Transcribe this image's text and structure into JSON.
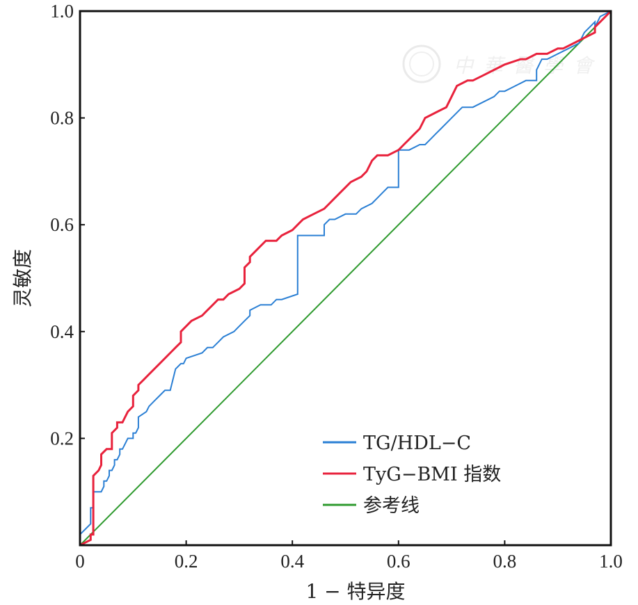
{
  "chart_data": {
    "type": "line",
    "xlabel": "1 − 特异度",
    "ylabel": "灵敏度",
    "xlim": [
      0,
      1
    ],
    "ylim": [
      0,
      1
    ],
    "x_ticks": [
      {
        "value": 0,
        "label": "0"
      },
      {
        "value": 0.2,
        "label": "0.2"
      },
      {
        "value": 0.4,
        "label": "0.4"
      },
      {
        "value": 0.6,
        "label": "0.6"
      },
      {
        "value": 0.8,
        "label": "0.8"
      },
      {
        "value": 1.0,
        "label": "1.0"
      }
    ],
    "y_ticks": [
      {
        "value": 0.2,
        "label": "0.2"
      },
      {
        "value": 0.4,
        "label": "0.4"
      },
      {
        "value": 0.6,
        "label": "0.6"
      },
      {
        "value": 0.8,
        "label": "0.8"
      },
      {
        "value": 1.0,
        "label": "1.0"
      }
    ],
    "grid": false,
    "legend_position": "bottom-right",
    "watermark": "中華醫學會",
    "series": [
      {
        "name": "TG/HDL−C",
        "color": "#2a7fd4",
        "x": [
          0,
          0.01,
          0.02,
          0.02,
          0.025,
          0.025,
          0.04,
          0.045,
          0.045,
          0.05,
          0.055,
          0.055,
          0.06,
          0.065,
          0.065,
          0.07,
          0.075,
          0.075,
          0.08,
          0.085,
          0.085,
          0.09,
          0.1,
          0.1,
          0.105,
          0.11,
          0.11,
          0.125,
          0.13,
          0.14,
          0.15,
          0.16,
          0.17,
          0.18,
          0.19,
          0.195,
          0.2,
          0.23,
          0.24,
          0.25,
          0.26,
          0.27,
          0.29,
          0.3,
          0.31,
          0.32,
          0.32,
          0.34,
          0.35,
          0.36,
          0.37,
          0.38,
          0.41,
          0.41,
          0.42,
          0.42,
          0.46,
          0.46,
          0.47,
          0.48,
          0.5,
          0.52,
          0.53,
          0.55,
          0.56,
          0.57,
          0.58,
          0.59,
          0.6,
          0.6,
          0.62,
          0.64,
          0.65,
          0.66,
          0.67,
          0.68,
          0.7,
          0.71,
          0.72,
          0.74,
          0.78,
          0.79,
          0.8,
          0.82,
          0.84,
          0.85,
          0.86,
          0.86,
          0.87,
          0.88,
          0.92,
          0.94,
          0.95,
          0.97,
          0.97,
          0.98,
          1.0
        ],
        "y": [
          0.02,
          0.03,
          0.04,
          0.07,
          0.07,
          0.1,
          0.1,
          0.11,
          0.12,
          0.12,
          0.13,
          0.14,
          0.14,
          0.15,
          0.16,
          0.16,
          0.17,
          0.18,
          0.18,
          0.19,
          0.19,
          0.2,
          0.2,
          0.21,
          0.21,
          0.22,
          0.24,
          0.25,
          0.26,
          0.27,
          0.28,
          0.29,
          0.29,
          0.33,
          0.34,
          0.34,
          0.35,
          0.36,
          0.37,
          0.37,
          0.38,
          0.39,
          0.4,
          0.41,
          0.42,
          0.43,
          0.44,
          0.45,
          0.45,
          0.45,
          0.46,
          0.46,
          0.47,
          0.58,
          0.58,
          0.58,
          0.58,
          0.6,
          0.61,
          0.61,
          0.62,
          0.62,
          0.63,
          0.64,
          0.65,
          0.66,
          0.67,
          0.67,
          0.67,
          0.74,
          0.74,
          0.75,
          0.75,
          0.76,
          0.77,
          0.78,
          0.8,
          0.81,
          0.82,
          0.82,
          0.84,
          0.85,
          0.85,
          0.86,
          0.87,
          0.87,
          0.87,
          0.89,
          0.91,
          0.91,
          0.93,
          0.94,
          0.96,
          0.98,
          0.97,
          0.99,
          1.0
        ]
      },
      {
        "name": "TyG−BMI 指数",
        "color": "#e8223c",
        "x": [
          0,
          0.02,
          0.02,
          0.025,
          0.025,
          0.035,
          0.04,
          0.04,
          0.05,
          0.06,
          0.06,
          0.07,
          0.07,
          0.08,
          0.09,
          0.1,
          0.1,
          0.11,
          0.11,
          0.12,
          0.13,
          0.14,
          0.15,
          0.16,
          0.17,
          0.18,
          0.19,
          0.19,
          0.2,
          0.21,
          0.23,
          0.24,
          0.25,
          0.26,
          0.27,
          0.28,
          0.3,
          0.31,
          0.31,
          0.32,
          0.32,
          0.34,
          0.35,
          0.37,
          0.38,
          0.4,
          0.41,
          0.42,
          0.44,
          0.46,
          0.47,
          0.48,
          0.49,
          0.5,
          0.51,
          0.53,
          0.54,
          0.55,
          0.56,
          0.57,
          0.58,
          0.6,
          0.61,
          0.62,
          0.63,
          0.64,
          0.65,
          0.67,
          0.69,
          0.7,
          0.71,
          0.73,
          0.74,
          0.76,
          0.78,
          0.8,
          0.83,
          0.84,
          0.86,
          0.88,
          0.9,
          0.91,
          0.93,
          0.95,
          0.97,
          0.97,
          0.98,
          1.0
        ],
        "y": [
          0.0,
          0.01,
          0.02,
          0.02,
          0.13,
          0.14,
          0.15,
          0.17,
          0.18,
          0.18,
          0.21,
          0.22,
          0.23,
          0.23,
          0.25,
          0.26,
          0.28,
          0.29,
          0.3,
          0.31,
          0.32,
          0.33,
          0.34,
          0.35,
          0.36,
          0.37,
          0.38,
          0.4,
          0.41,
          0.42,
          0.43,
          0.44,
          0.45,
          0.46,
          0.46,
          0.47,
          0.48,
          0.49,
          0.52,
          0.53,
          0.54,
          0.56,
          0.57,
          0.57,
          0.58,
          0.59,
          0.6,
          0.61,
          0.62,
          0.63,
          0.64,
          0.65,
          0.66,
          0.67,
          0.68,
          0.69,
          0.7,
          0.72,
          0.73,
          0.73,
          0.73,
          0.74,
          0.75,
          0.76,
          0.77,
          0.78,
          0.8,
          0.81,
          0.82,
          0.84,
          0.86,
          0.87,
          0.87,
          0.88,
          0.89,
          0.9,
          0.91,
          0.91,
          0.92,
          0.92,
          0.93,
          0.93,
          0.94,
          0.95,
          0.96,
          0.97,
          0.98,
          1.0
        ]
      },
      {
        "name": "参考线",
        "color": "#2e9a2e",
        "x": [
          0,
          1
        ],
        "y": [
          0,
          1
        ]
      }
    ]
  }
}
